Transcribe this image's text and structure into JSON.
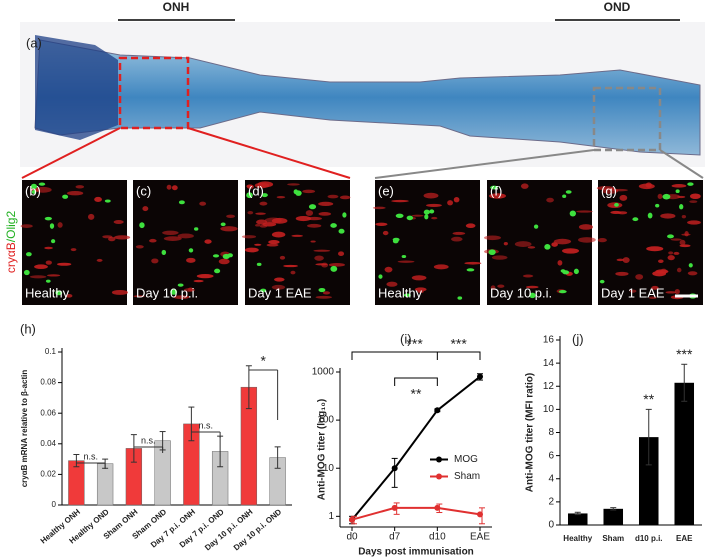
{
  "figure": {
    "panel_a": {
      "label": "(a)",
      "regions": [
        "ONH",
        "OND"
      ]
    },
    "channel_label": [
      "cryαB",
      "/Olig2"
    ],
    "micrographs": [
      {
        "label": "(b)",
        "caption": "Healthy"
      },
      {
        "label": "(c)",
        "caption": "Day 10 p.i."
      },
      {
        "label": "(d)",
        "caption": "Day 1 EAE"
      },
      {
        "label": "(e)",
        "caption": "Healthy"
      },
      {
        "label": "(f)",
        "caption": "Day 10 p.i."
      },
      {
        "label": "(g)",
        "caption": "Day 1 EAE"
      }
    ]
  },
  "chart_data": [
    {
      "type": "bar",
      "panel": "(h)",
      "ylabel": "cryαB mRNA relative to β-actin",
      "categories": [
        "Healthy ONH",
        "Healthy OND",
        "Sham ONH",
        "Sham OND",
        "Day 7 p.i. ONH",
        "Day 7 p.i. OND",
        "Day 10 p.i. ONH",
        "Day 10 p.i. OND"
      ],
      "values": [
        0.029,
        0.027,
        0.037,
        0.042,
        0.053,
        0.035,
        0.077,
        0.031
      ],
      "errors": [
        0.004,
        0.003,
        0.009,
        0.006,
        0.011,
        0.01,
        0.014,
        0.007
      ],
      "colors": [
        "#f03a3a",
        "#c8c8c8",
        "#f03a3a",
        "#c8c8c8",
        "#f03a3a",
        "#c8c8c8",
        "#f03a3a",
        "#c8c8c8"
      ],
      "ylim": [
        0,
        0.1
      ],
      "yticks": [
        0,
        0.02,
        0.04,
        0.06,
        0.08,
        0.1
      ],
      "annotations": [
        "n.s.",
        "n.s.",
        "n.s.",
        "*"
      ]
    },
    {
      "type": "line",
      "panel": "(i)",
      "xlabel": "Days post immunisation",
      "ylabel": "Anti-MOG titer (log₁₀)",
      "categories": [
        "d0",
        "d7",
        "d10",
        "EAE"
      ],
      "series": [
        {
          "name": "MOG",
          "color": "#000000",
          "values": [
            0.85,
            10,
            160,
            800
          ],
          "errors": [
            0.15,
            6,
            10,
            120
          ]
        },
        {
          "name": "Sham",
          "color": "#e03030",
          "values": [
            0.85,
            1.5,
            1.5,
            1.1
          ],
          "errors": [
            0.15,
            0.4,
            0.3,
            0.4
          ]
        }
      ],
      "ylim": [
        0.6,
        1000
      ],
      "yticks": [
        1,
        10,
        100,
        1000
      ],
      "log_scale": true,
      "legend": "right",
      "annotations": [
        "***",
        "**",
        "***"
      ]
    },
    {
      "type": "bar",
      "panel": "(j)",
      "ylabel": "Anti-MOG titer (MFI ratio)",
      "categories": [
        "Healthy",
        "Sham",
        "d10 p.i.",
        "EAE"
      ],
      "values": [
        1,
        1.4,
        7.6,
        12.3
      ],
      "errors": [
        0.1,
        0.1,
        2.4,
        1.6
      ],
      "color": "#000000",
      "ylim": [
        0,
        16
      ],
      "yticks": [
        0,
        2,
        4,
        6,
        8,
        10,
        12,
        14,
        16
      ],
      "annotations": [
        "**",
        "***"
      ]
    }
  ]
}
